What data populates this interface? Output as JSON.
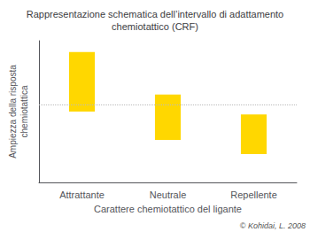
{
  "chart_data": {
    "type": "range_bar",
    "title": "Rappresentazione schematica dell’intervallo di adattamento\nchemiotattico (CRF)",
    "xlabel": "Carattere chemiotattico del ligante",
    "ylabel": "Ampiezza della risposta\nchemiotattica",
    "annotation": "© Kohidai, L. 2008",
    "categories": [
      "Attrattante",
      "Neutrale",
      "Repellente"
    ],
    "low": [
      50,
      30,
      20
    ],
    "high": [
      92,
      62,
      48
    ],
    "color": "#FFD700",
    "reference_line": {
      "y": 55,
      "color": "#BBBBBB",
      "line_style": "dotted"
    },
    "ylim": [
      0,
      100
    ],
    "tick_labels": "x",
    "grid": false
  }
}
